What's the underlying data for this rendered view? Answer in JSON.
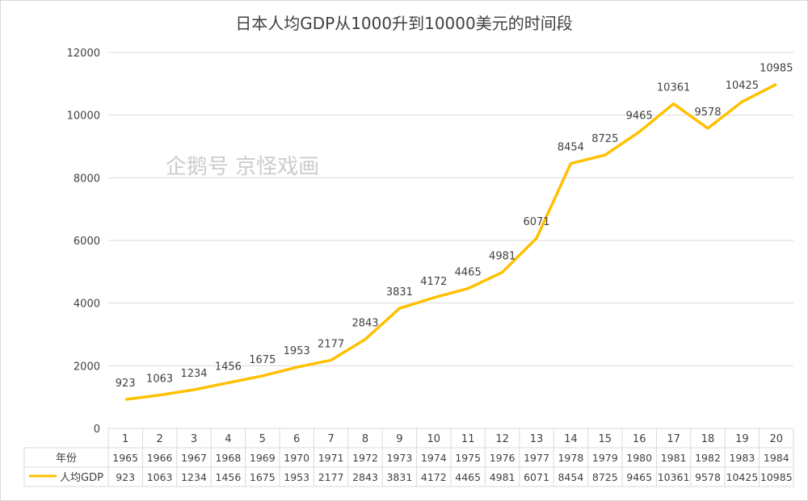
{
  "chart_data": {
    "type": "line",
    "title": "日本人均GDP从1000升到10000美元的时间段",
    "categories": [
      "1",
      "2",
      "3",
      "4",
      "5",
      "6",
      "7",
      "8",
      "9",
      "10",
      "11",
      "12",
      "13",
      "14",
      "15",
      "16",
      "17",
      "18",
      "19",
      "20"
    ],
    "ylim": [
      0,
      12000
    ],
    "yticks": [
      "0",
      "2000",
      "4000",
      "6000",
      "8000",
      "10000",
      "12000"
    ],
    "grid": true,
    "series": [
      {
        "name": "人均GDP",
        "color": "#FFC000",
        "values": [
          923,
          1063,
          1234,
          1456,
          1675,
          1953,
          2177,
          2843,
          3831,
          4172,
          4465,
          4981,
          6071,
          8454,
          8725,
          9465,
          10361,
          9578,
          10425,
          10985
        ]
      }
    ],
    "data_table": {
      "row_label": "年份",
      "years": [
        "1965",
        "1966",
        "1967",
        "1968",
        "1969",
        "1970",
        "1971",
        "1972",
        "1973",
        "1974",
        "1975",
        "1976",
        "1977",
        "1978",
        "1979",
        "1980",
        "1981",
        "1982",
        "1983",
        "1984"
      ]
    }
  },
  "watermark": "企鹅号 京怪戏画"
}
